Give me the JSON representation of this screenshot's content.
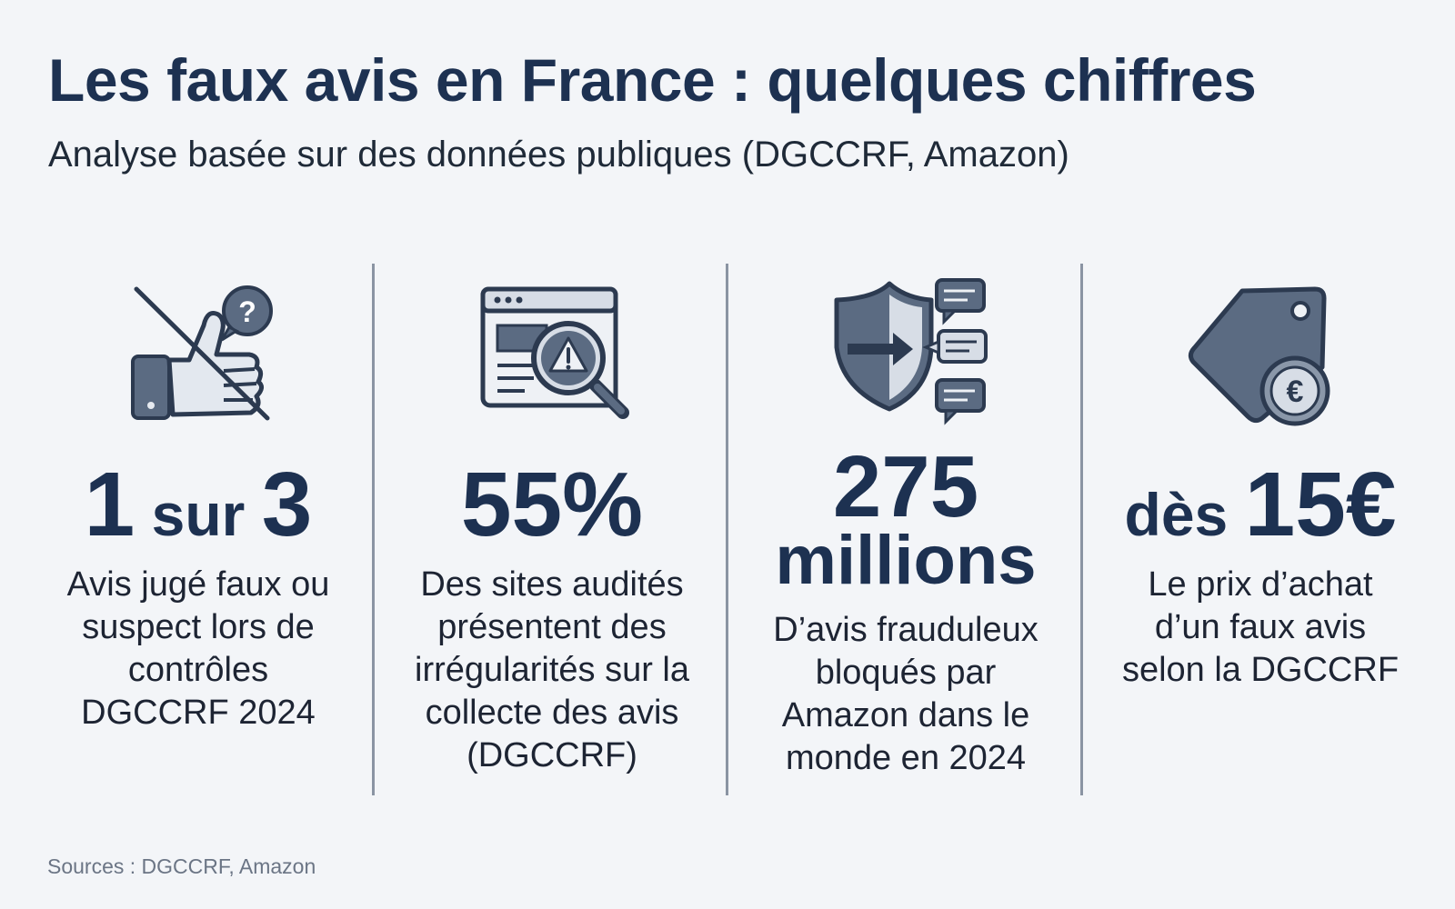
{
  "header": {
    "title": "Les faux avis en France : quelques chiffres",
    "subtitle": "Analyse basée sur des données publiques (DGCCRF, Amazon)"
  },
  "stats": [
    {
      "icon": "thumbs-up-crossed-question-icon",
      "value_parts": [
        "1",
        " sur ",
        "3"
      ],
      "description": "Avis jugé faux ou suspect lors de contrôles DGCCRF 2024"
    },
    {
      "icon": "browser-magnifier-warning-icon",
      "value": "55%",
      "description": "Des sites audités présentent des irrégularités sur la collecte des avis (DGCCRF)"
    },
    {
      "icon": "shield-arrow-chat-bubbles-icon",
      "value_line1": "275",
      "value_line2": "millions",
      "description": "D’avis frauduleux bloqués par Amazon dans le monde en 2024"
    },
    {
      "icon": "price-tag-euro-coin-icon",
      "value_parts": [
        "dès ",
        "15€"
      ],
      "description": "Le prix d’achat d’un faux avis selon la DGCCRF"
    }
  ],
  "footer": {
    "sources": "Sources : DGCCRF, Amazon"
  },
  "colors": {
    "background": "#f3f5f8",
    "primary": "#1d3151",
    "icon_fill": "#5b6b82",
    "icon_light": "#d7dde6",
    "divider": "#8a94a3",
    "muted": "#6b7585"
  }
}
